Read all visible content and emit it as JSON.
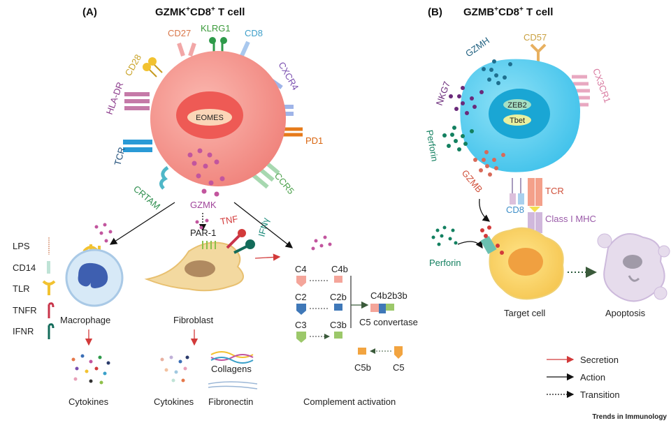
{
  "panel_a": {
    "letter": "(A)",
    "title_main": "GZMK",
    "title_sup1": "+",
    "title_mid": "CD8",
    "title_sup2": "+",
    "title_end": " T cell",
    "nucleus": "EOMES",
    "receptors": {
      "cd27": "CD27",
      "klrg1": "KLRG1",
      "cd8": "CD8",
      "cd28": "CD28",
      "hladr": "HLA-DR",
      "tcr": "TCR",
      "crtam": "CRTAM",
      "cxcr4": "CXCR4",
      "pd1": "PD1",
      "ccr5": "CCR5"
    },
    "secreted": "GZMK",
    "legend_left": [
      "LPS",
      "CD14",
      "TLR",
      "TNFR",
      "IFNR"
    ],
    "macrophage": {
      "label": "Macrophage",
      "output": "Cytokines"
    },
    "fibroblast": {
      "label": "Fibroblast",
      "receptor": "PAR-1",
      "tnf": "TNF",
      "ifng": "IFNγ",
      "outputs": [
        "Cytokines",
        "Collagens",
        "Fibronectin"
      ]
    },
    "complement": {
      "c4": "C4",
      "c4b": "C4b",
      "c2": "C2",
      "c2b": "C2b",
      "c3": "C3",
      "c3b": "C3b",
      "complex": "C4b2b3b",
      "convertase": "C5 convertase",
      "c5b": "C5b",
      "c5": "C5",
      "label": "Complement activation"
    }
  },
  "panel_b": {
    "letter": "(B)",
    "title_main": "GZMB",
    "title_sup1": "+",
    "title_mid": "CD8",
    "title_sup2": "+",
    "title_end": " T cell",
    "nucleus": [
      "ZEB2",
      "Tbet"
    ],
    "labels": {
      "cd57": "CD57",
      "gzmh": "GZMH",
      "nkg7": "NKG7",
      "perforin": "Perforin",
      "gzmb": "GZMB",
      "cx3cr1": "CX3CR1",
      "tcr": "TCR",
      "cd8": "CD8",
      "mhc": "Class I MHC",
      "perforin2": "Perforin"
    },
    "target": "Target cell",
    "apoptosis": "Apoptosis"
  },
  "legend": [
    {
      "label": "Secretion",
      "style": "solid",
      "color": "#d23a3a"
    },
    {
      "label": "Action",
      "style": "solid",
      "color": "#111111"
    },
    {
      "label": "Transition",
      "style": "dotted",
      "color": "#111111"
    }
  ],
  "footer": "Trends in Immunology",
  "colors": {
    "gzmk_cell": "#f59a92",
    "gzmb_cell": "#5fd0f0",
    "secretion": "#d23a3a"
  }
}
